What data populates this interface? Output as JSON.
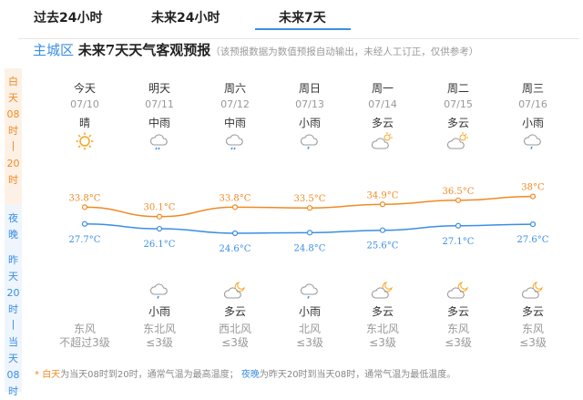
{
  "tabs": [
    {
      "label": "过去24小时"
    },
    {
      "label": "未来24小时"
    },
    {
      "label": "未来7天",
      "active": true
    }
  ],
  "title": {
    "city": "主城区",
    "main": "未来7天天气客观预报",
    "note": "（该预报数据为数值预报自动输出，未经人工订正，仅供参考）"
  },
  "side": {
    "day": [
      "白",
      "天",
      "08",
      "时",
      "|",
      "20",
      "时"
    ],
    "night": [
      "夜",
      "晚",
      "",
      "昨",
      "天",
      "20",
      "时",
      "|",
      "当",
      "天",
      "08",
      "时"
    ]
  },
  "days": [
    {
      "name": "今天",
      "date": "07/10",
      "day_wx": "晴",
      "day_icon": "sun-icon",
      "night_wx": "",
      "night_icon": "",
      "wind_dir": "东风",
      "wind_lvl": "不超过3级"
    },
    {
      "name": "明天",
      "date": "07/11",
      "day_wx": "中雨",
      "day_icon": "moderate-rain-icon",
      "night_wx": "小雨",
      "night_icon": "light-rain-icon",
      "wind_dir": "东北风",
      "wind_lvl": "≤3级"
    },
    {
      "name": "周六",
      "date": "07/12",
      "day_wx": "中雨",
      "day_icon": "moderate-rain-icon",
      "night_wx": "多云",
      "night_icon": "cloudy-night-icon",
      "wind_dir": "西北风",
      "wind_lvl": "≤3级"
    },
    {
      "name": "周日",
      "date": "07/13",
      "day_wx": "小雨",
      "day_icon": "light-rain-icon",
      "night_wx": "小雨",
      "night_icon": "light-rain-icon",
      "wind_dir": "北风",
      "wind_lvl": "≤3级"
    },
    {
      "name": "周一",
      "date": "07/14",
      "day_wx": "多云",
      "day_icon": "partly-cloudy-icon",
      "night_wx": "多云",
      "night_icon": "cloudy-night-icon",
      "wind_dir": "东北风",
      "wind_lvl": "≤3级"
    },
    {
      "name": "周二",
      "date": "07/15",
      "day_wx": "多云",
      "day_icon": "partly-cloudy-icon",
      "night_wx": "多云",
      "night_icon": "cloudy-night-icon",
      "wind_dir": "东风",
      "wind_lvl": "≤3级"
    },
    {
      "name": "周三",
      "date": "07/16",
      "day_wx": "小雨",
      "day_icon": "light-rain-icon",
      "night_wx": "多云",
      "night_icon": "cloudy-night-icon",
      "wind_dir": "东风",
      "wind_lvl": "≤3级"
    }
  ],
  "chart_data": {
    "type": "line",
    "categories": [
      "07/10",
      "07/11",
      "07/12",
      "07/13",
      "07/14",
      "07/15",
      "07/16"
    ],
    "series": [
      {
        "name": "高温",
        "values": [
          33.8,
          30.1,
          33.8,
          33.5,
          34.9,
          36.5,
          38
        ],
        "labels": [
          "33.8°C",
          "30.1°C",
          "33.8°C",
          "33.5°C",
          "34.9°C",
          "36.5°C",
          "38°C"
        ]
      },
      {
        "name": "低温",
        "values": [
          27.7,
          26.1,
          24.6,
          24.8,
          25.6,
          27.1,
          27.6
        ],
        "labels": [
          "27.7°C",
          "26.1°C",
          "24.6°C",
          "24.8°C",
          "25.6°C",
          "27.1°C",
          "27.6°C"
        ]
      }
    ]
  },
  "colors": {
    "high": "#f08a24",
    "low": "#3a8ee6"
  },
  "footer": {
    "star": "* ",
    "day": "白天",
    "day_desc": "为当天08时到20时，通常气温为最高温度；",
    "night": "夜晚",
    "night_desc": "为昨天20时到当天08时，通常气温为最低温度。"
  }
}
